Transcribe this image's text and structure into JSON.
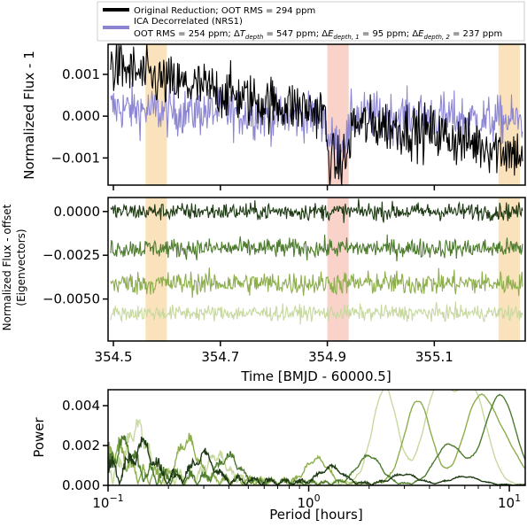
{
  "colors": {
    "original": "#000000",
    "ica": "#8C86D2",
    "eigen": [
      "#1E3A14",
      "#4E7C2E",
      "#8DAE4C",
      "#C8D9A0"
    ],
    "band_orange": "#F6C77A",
    "band_pink": "#F4A896"
  },
  "chart_data": [
    {
      "type": "line",
      "panel": "light-curve",
      "title": "",
      "xlabel": "",
      "ylabel": "Normalized Flux - 1",
      "xlim": [
        354.49,
        355.27
      ],
      "ylim": [
        -0.00165,
        0.00172
      ],
      "yticks": [
        0.001,
        0.0,
        -0.001
      ],
      "ytick_labels": [
        "0.001",
        "0.000",
        "−0.001"
      ],
      "legend_position": "top",
      "shaded_bands": [
        {
          "x0": 354.56,
          "x1": 354.6,
          "color": "orange"
        },
        {
          "x0": 354.9,
          "x1": 354.94,
          "color": "pink"
        },
        {
          "x0": 355.22,
          "x1": 355.26,
          "color": "orange"
        }
      ],
      "series": [
        {
          "name": "Original Reduction; OOT RMS = 294 ppm",
          "points": [
            [
              354.5,
              0.0012
            ],
            [
              354.55,
              0.001
            ],
            [
              354.6,
              0.0008
            ],
            [
              354.65,
              0.0007
            ],
            [
              354.7,
              0.0006
            ],
            [
              354.75,
              0.0004
            ],
            [
              354.8,
              0.0003
            ],
            [
              354.85,
              0.0002
            ],
            [
              354.895,
              0.0001
            ],
            [
              354.9,
              -0.0009
            ],
            [
              354.92,
              -0.0012
            ],
            [
              354.94,
              -0.0009
            ],
            [
              354.945,
              -0.0002
            ],
            [
              355.0,
              -0.0002
            ],
            [
              355.05,
              -0.0003
            ],
            [
              355.1,
              -0.0004
            ],
            [
              355.15,
              -0.0006
            ],
            [
              355.2,
              -0.0007
            ],
            [
              355.26,
              -0.0009
            ]
          ]
        },
        {
          "name": "ICA Decorrelated (NRS1)",
          "name_line2": "OOT RMS = 254 ppm; ΔT_depth = 547 ppm; ΔE_depth,1 = 95 ppm; ΔE_depth,2 = 237 ppm",
          "points": [
            [
              354.5,
              0.0002
            ],
            [
              354.6,
              0.0001
            ],
            [
              354.7,
              0.0001
            ],
            [
              354.8,
              0.0
            ],
            [
              354.895,
              0.0
            ],
            [
              354.9,
              -0.0005
            ],
            [
              354.92,
              -0.0007
            ],
            [
              354.94,
              -0.0005
            ],
            [
              354.945,
              0.0
            ],
            [
              355.0,
              0.0
            ],
            [
              355.1,
              0.0
            ],
            [
              355.2,
              -0.0001
            ],
            [
              355.26,
              -0.0001
            ]
          ]
        }
      ]
    },
    {
      "type": "line",
      "panel": "eigenvectors",
      "title": "",
      "xlabel": "Time [BMJD - 60000.5]",
      "ylabel": "Normalized Flux - offset",
      "ylabel_line2": "(Eigenvectors)",
      "xlim": [
        354.49,
        355.27
      ],
      "ylim": [
        -0.0074,
        0.0008
      ],
      "xticks": [
        354.5,
        354.7,
        354.9,
        355.1
      ],
      "xtick_labels": [
        "354.5",
        "354.7",
        "354.9",
        "355.1"
      ],
      "yticks": [
        0.0,
        -0.0025,
        -0.005
      ],
      "ytick_labels": [
        "0.0000",
        "−0.0025",
        "−0.0050"
      ],
      "shaded_bands": [
        {
          "x0": 354.56,
          "x1": 354.6,
          "color": "orange"
        },
        {
          "x0": 354.9,
          "x1": 354.94,
          "color": "pink"
        },
        {
          "x0": 355.22,
          "x1": 355.26,
          "color": "orange"
        }
      ],
      "series": [
        {
          "offset": 0.0,
          "noise": 0.00045
        },
        {
          "offset": -0.0021,
          "noise": 0.0005
        },
        {
          "offset": -0.0041,
          "noise": 0.0006
        },
        {
          "offset": -0.0058,
          "noise": 0.0004
        }
      ]
    },
    {
      "type": "line",
      "panel": "periodogram",
      "title": "",
      "xlabel": "Period [hours]",
      "ylabel": "Power",
      "xscale": "log",
      "xlim": [
        0.1,
        12.0
      ],
      "ylim": [
        0.0,
        0.0048
      ],
      "xticks": [
        0.1,
        1.0,
        10.0
      ],
      "xtick_labels_base": [
        "10",
        "10",
        "10"
      ],
      "xtick_labels_exp": [
        "−1",
        "0",
        "1"
      ],
      "yticks": [
        0.0,
        0.002,
        0.004
      ],
      "ytick_labels": [
        "0.000",
        "0.002",
        "0.004"
      ],
      "series": [
        {
          "peaks": [
            [
              0.15,
              0.0015
            ],
            [
              0.3,
              0.0012
            ],
            [
              1.3,
              0.0008
            ],
            [
              3.0,
              0.0005
            ],
            [
              6.0,
              0.0004
            ]
          ]
        },
        {
          "peaks": [
            [
              0.12,
              0.0015
            ],
            [
              0.4,
              0.0012
            ],
            [
              2.0,
              0.0014
            ],
            [
              5.0,
              0.002
            ],
            [
              9.0,
              0.0045
            ]
          ]
        },
        {
          "peaks": [
            [
              0.11,
              0.0012
            ],
            [
              0.25,
              0.0019
            ],
            [
              1.1,
              0.0012
            ],
            [
              3.5,
              0.0042
            ],
            [
              7.0,
              0.004
            ],
            [
              9.5,
              0.0018
            ]
          ]
        },
        {
          "peaks": [
            [
              0.14,
              0.0024
            ],
            [
              0.35,
              0.0012
            ],
            [
              2.4,
              0.0048
            ],
            [
              4.4,
              0.0048
            ],
            [
              6.5,
              0.0048
            ]
          ]
        }
      ]
    }
  ]
}
